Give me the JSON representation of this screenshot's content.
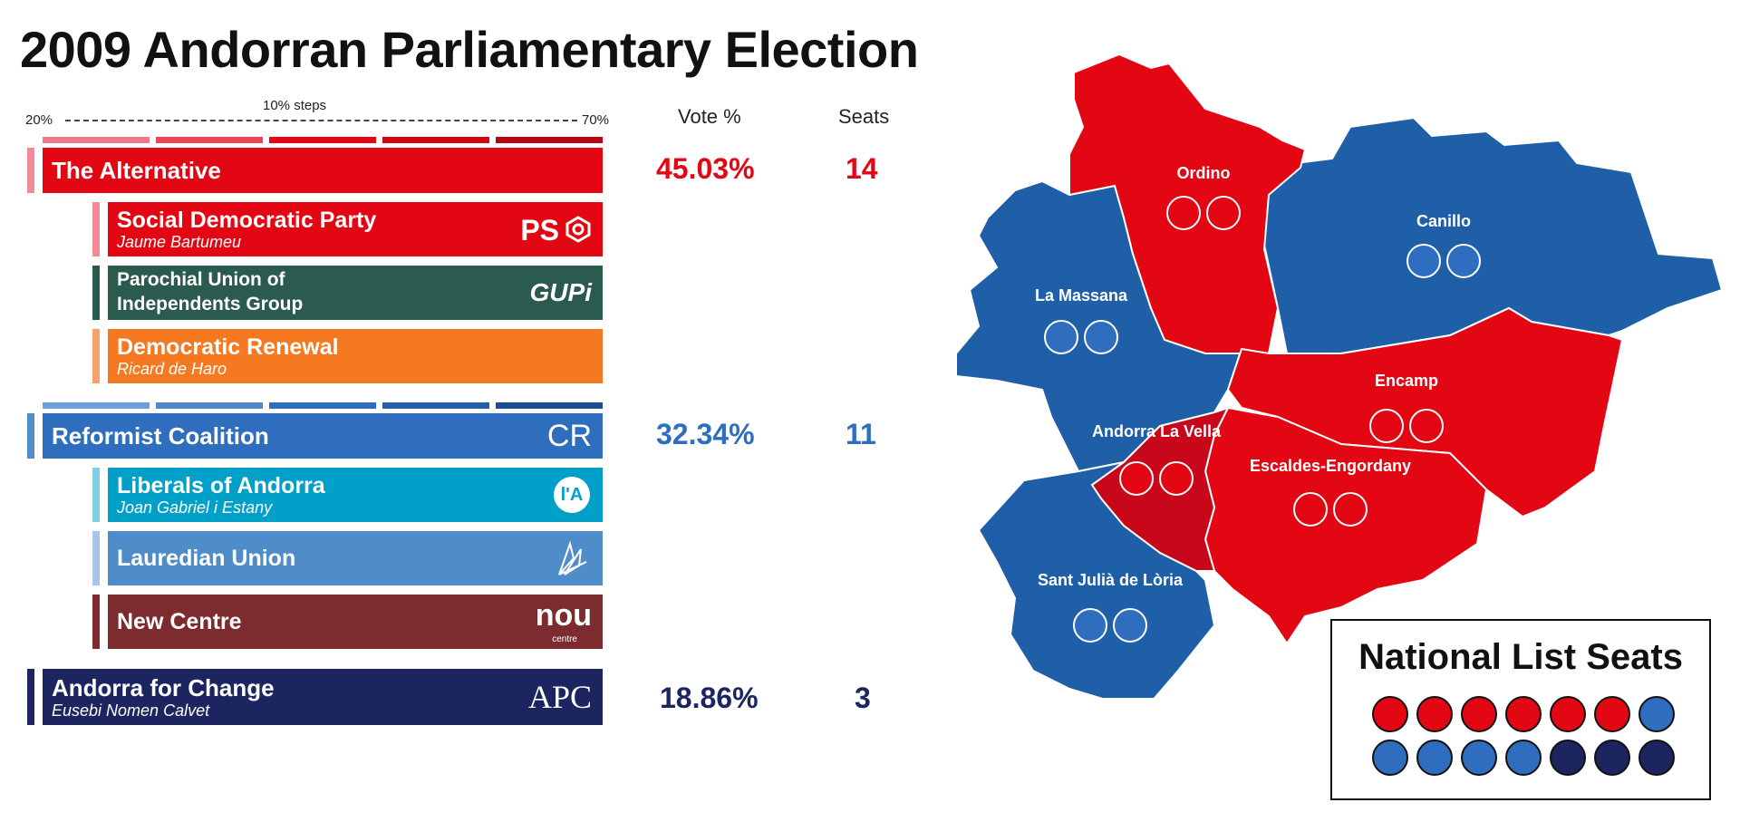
{
  "title": "2009 Andorran Parliamentary Election",
  "scale": {
    "left": "20%",
    "right": "70%",
    "caption": "10% steps"
  },
  "headers": {
    "vote": "Vote %",
    "seats": "Seats"
  },
  "colors": {
    "alternative": "#e30613",
    "reformist": "#2f6ebf",
    "apc": "#1c2560",
    "gupi": "#2b5a4e",
    "renewal": "#f47920",
    "liberals": "#00a0c8",
    "lauredian": "#4f8dca",
    "newcentre": "#7c2c2f",
    "map_red": "#e30613",
    "map_blue": "#1f5fa8",
    "map_darkred": "#c8081a"
  },
  "coalitions": {
    "alternative": {
      "name": "The Alternative",
      "vote": "45.03%",
      "seats": "14"
    },
    "reformist": {
      "name": "Reformist Coalition",
      "logo": "CR",
      "vote": "32.34%",
      "seats": "11"
    },
    "apc": {
      "name": "Andorra for Change",
      "leader": "Eusebi Nomen Calvet",
      "logo": "APC",
      "vote": "18.86%",
      "seats": "3"
    }
  },
  "parties": {
    "ps": {
      "name": "Social Democratic Party",
      "leader": "Jaume Bartumeu",
      "logo": "PS"
    },
    "gupi": {
      "name_line1": "Parochial Union of",
      "name_line2": "Independents Group",
      "logo": "GUPi"
    },
    "renewal": {
      "name": "Democratic Renewal",
      "leader": "Ricard de Haro"
    },
    "liberals": {
      "name": "Liberals of Andorra",
      "leader": "Joan Gabriel i Estany",
      "logo": "l'A"
    },
    "lauredian": {
      "name": "Lauredian Union"
    },
    "newcentre": {
      "name": "New Centre",
      "logo": "nou",
      "logo_sub": "centre"
    }
  },
  "chart_data": {
    "type": "bar",
    "categories": [
      "The Alternative",
      "Reformist Coalition",
      "Andorra for Change"
    ],
    "series": [
      {
        "name": "Vote %",
        "values": [
          45.03,
          32.34,
          18.86
        ]
      },
      {
        "name": "Seats",
        "values": [
          14,
          11,
          3
        ]
      }
    ],
    "xlim": [
      20,
      70
    ],
    "tick_step": 10
  },
  "map": {
    "parishes": [
      {
        "name": "Ordino",
        "winner": "The Alternative",
        "seats": 2
      },
      {
        "name": "Canillo",
        "winner": "Reformist Coalition",
        "seats": 2
      },
      {
        "name": "La Massana",
        "winner": "Reformist Coalition",
        "seats": 2
      },
      {
        "name": "Encamp",
        "winner": "The Alternative",
        "seats": 2
      },
      {
        "name": "Andorra La Vella",
        "winner": "The Alternative",
        "seats": 2
      },
      {
        "name": "Escaldes-Engordany",
        "winner": "The Alternative",
        "seats": 2
      },
      {
        "name": "Sant Julià de Lòria",
        "winner": "Reformist Coalition",
        "seats": 2
      }
    ]
  },
  "national_list": {
    "title": "National List Seats",
    "seats": [
      "alternative",
      "alternative",
      "alternative",
      "alternative",
      "alternative",
      "alternative",
      "reformist",
      "reformist",
      "reformist",
      "reformist",
      "reformist",
      "apc",
      "apc",
      "apc"
    ]
  }
}
